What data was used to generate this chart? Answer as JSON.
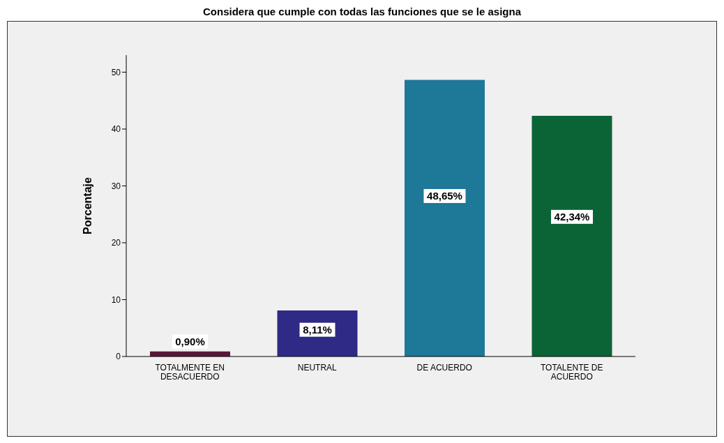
{
  "chart_data": {
    "type": "bar",
    "title": "Considera que cumple con todas las funciones que se le asigna",
    "ylabel": "Porcentaje",
    "categories": [
      "TOTALMENTE EN DESACUERDO",
      "NEUTRAL",
      "DE ACUERDO",
      "TOTALENTE DE ACUERDO"
    ],
    "values": [
      0.9,
      8.11,
      48.65,
      42.34
    ],
    "colors": [
      "#5a1838",
      "#2e2a86",
      "#1e7898",
      "#0b6436"
    ],
    "value_labels": [
      "0,90%",
      "8,11%",
      "48,65%",
      "42,34%"
    ],
    "ylim": [
      0,
      53
    ],
    "yticks": [
      0,
      10,
      20,
      30,
      40,
      50
    ]
  }
}
